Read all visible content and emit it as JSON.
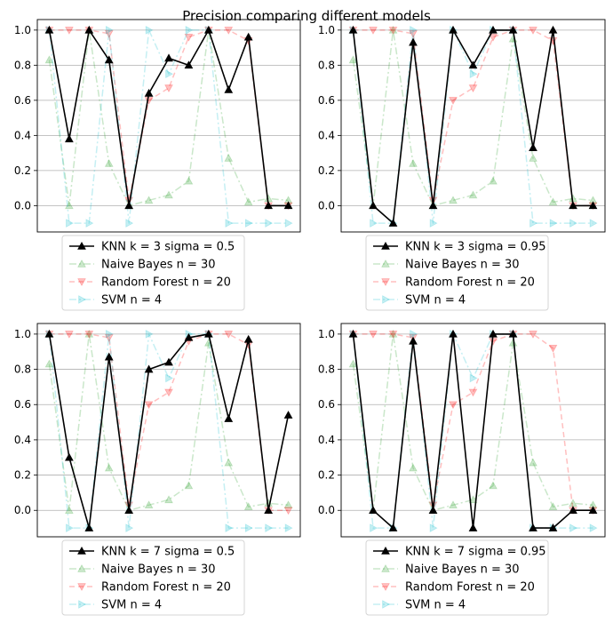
{
  "figure": {
    "title": "Precision comparing different models"
  },
  "style": {
    "colors": {
      "knn": "#000000",
      "naive_bayes": "#2ca02c",
      "random_forest": "#ff0000",
      "svm": "#17becf",
      "grid": "#b0b0b0"
    },
    "markers": {
      "knn": "triangle-up",
      "naive_bayes": "triangle-up",
      "random_forest": "triangle-down",
      "svm": "triangle-right"
    }
  },
  "chart_data": [
    {
      "type": "line",
      "x": [
        0,
        1,
        2,
        3,
        4,
        5,
        6,
        7,
        8,
        9,
        10,
        11,
        12
      ],
      "ylim": [
        -0.15,
        1.06
      ],
      "yticks": [
        "0.0",
        "0.2",
        "0.4",
        "0.6",
        "0.8",
        "1.0"
      ],
      "grid": "y",
      "legend_position": "below",
      "series": [
        {
          "name": "KNN k = 3 sigma = 0.5",
          "values": [
            1.0,
            0.38,
            1.0,
            0.83,
            0.0,
            0.64,
            0.84,
            0.8,
            1.0,
            0.66,
            0.96,
            0.0,
            0.0
          ]
        },
        {
          "name": "Naive Bayes n = 30",
          "values": [
            0.83,
            0.0,
            1.0,
            0.24,
            0.0,
            0.03,
            0.06,
            0.14,
            1.0,
            0.27,
            0.02,
            0.04,
            0.03
          ]
        },
        {
          "name": "Random Forest n = 20",
          "values": [
            1.0,
            1.0,
            1.0,
            0.98,
            0.03,
            0.6,
            0.67,
            0.96,
            1.0,
            1.0,
            0.94,
            0.0,
            0.0
          ]
        },
        {
          "name": "SVM n = 4",
          "values": [
            1.0,
            -0.1,
            -0.1,
            1.0,
            -0.1,
            1.0,
            0.75,
            1.0,
            1.0,
            -0.1,
            -0.1,
            -0.1,
            -0.1
          ]
        }
      ]
    },
    {
      "type": "line",
      "x": [
        0,
        1,
        2,
        3,
        4,
        5,
        6,
        7,
        8,
        9,
        10,
        11,
        12
      ],
      "ylim": [
        -0.15,
        1.06
      ],
      "yticks": [
        "0.0",
        "0.2",
        "0.4",
        "0.6",
        "0.8",
        "1.0"
      ],
      "grid": "y",
      "legend_position": "below",
      "series": [
        {
          "name": "KNN k = 3 sigma = 0.95",
          "values": [
            1.0,
            0.0,
            -0.1,
            0.93,
            0.0,
            1.0,
            0.8,
            1.0,
            1.0,
            0.33,
            1.0,
            0.0,
            0.0
          ]
        },
        {
          "name": "Naive Bayes n = 30",
          "values": [
            0.83,
            0.0,
            1.0,
            0.24,
            0.0,
            0.03,
            0.06,
            0.14,
            0.95,
            0.27,
            0.02,
            0.04,
            0.03
          ]
        },
        {
          "name": "Random Forest n = 20",
          "values": [
            1.0,
            1.0,
            1.0,
            0.98,
            0.03,
            0.6,
            0.67,
            0.96,
            1.0,
            1.0,
            0.94,
            0.0,
            0.0
          ]
        },
        {
          "name": "SVM n = 4",
          "values": [
            1.0,
            -0.1,
            -0.1,
            1.0,
            -0.1,
            1.0,
            0.75,
            1.0,
            1.0,
            -0.1,
            -0.1,
            -0.1,
            -0.1
          ]
        }
      ]
    },
    {
      "type": "line",
      "x": [
        0,
        1,
        2,
        3,
        4,
        5,
        6,
        7,
        8,
        9,
        10,
        11,
        12
      ],
      "ylim": [
        -0.15,
        1.06
      ],
      "yticks": [
        "0.0",
        "0.2",
        "0.4",
        "0.6",
        "0.8",
        "1.0"
      ],
      "grid": "y",
      "legend_position": "below",
      "series": [
        {
          "name": "KNN k = 7 sigma = 0.5",
          "values": [
            1.0,
            0.3,
            -0.1,
            0.87,
            0.0,
            0.8,
            0.84,
            0.98,
            1.0,
            0.52,
            0.97,
            0.0,
            0.54
          ]
        },
        {
          "name": "Naive Bayes n = 30",
          "values": [
            0.83,
            0.0,
            1.0,
            0.24,
            0.0,
            0.03,
            0.06,
            0.14,
            0.95,
            0.27,
            0.02,
            0.04,
            0.03
          ]
        },
        {
          "name": "Random Forest n = 20",
          "values": [
            1.0,
            1.0,
            1.0,
            0.98,
            0.03,
            0.6,
            0.67,
            0.96,
            1.0,
            1.0,
            0.94,
            0.0,
            0.0
          ]
        },
        {
          "name": "SVM n = 4",
          "values": [
            1.0,
            -0.1,
            -0.1,
            1.0,
            -0.1,
            1.0,
            0.75,
            1.0,
            1.0,
            -0.1,
            -0.1,
            -0.1,
            -0.1
          ]
        }
      ]
    },
    {
      "type": "line",
      "x": [
        0,
        1,
        2,
        3,
        4,
        5,
        6,
        7,
        8,
        9,
        10,
        11,
        12
      ],
      "ylim": [
        -0.15,
        1.06
      ],
      "yticks": [
        "0.0",
        "0.2",
        "0.4",
        "0.6",
        "0.8",
        "1.0"
      ],
      "grid": "y",
      "legend_position": "below",
      "series": [
        {
          "name": "KNN k = 7 sigma = 0.95",
          "values": [
            1.0,
            0.0,
            -0.1,
            0.96,
            0.0,
            1.0,
            -0.1,
            1.0,
            1.0,
            -0.1,
            -0.1,
            0.0,
            0.0
          ]
        },
        {
          "name": "Naive Bayes n = 30",
          "values": [
            0.83,
            0.0,
            1.0,
            0.24,
            0.0,
            0.03,
            0.06,
            0.14,
            0.95,
            0.27,
            0.02,
            0.04,
            0.03
          ]
        },
        {
          "name": "Random Forest n = 20",
          "values": [
            1.0,
            1.0,
            1.0,
            0.98,
            0.03,
            0.6,
            0.67,
            0.96,
            1.0,
            1.0,
            0.92,
            0.0,
            0.0
          ]
        },
        {
          "name": "SVM n = 4",
          "values": [
            1.0,
            -0.1,
            -0.1,
            1.0,
            -0.1,
            1.0,
            0.75,
            1.0,
            1.0,
            -0.1,
            -0.1,
            -0.1,
            -0.1
          ]
        }
      ]
    }
  ]
}
